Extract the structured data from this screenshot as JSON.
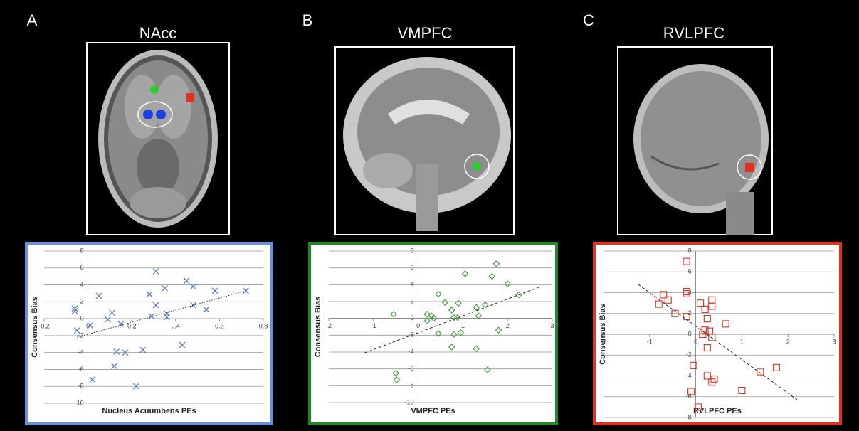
{
  "chart_data": [
    {
      "type": "scatter",
      "panel": "A",
      "title": "NAcc",
      "xlabel": "Nucleus Acuumbens PEs",
      "ylabel": "Consensus Bias",
      "color": "#5b7dbd",
      "frame_color": "#6a8fe0",
      "marker": "x",
      "grid": true,
      "xlim": [
        -0.2,
        0.8
      ],
      "ylim": [
        -10,
        8
      ],
      "xticks": [
        -0.2,
        0,
        0.2,
        0.4,
        0.6,
        0.8
      ],
      "yticks": [
        -10,
        -8,
        -6,
        -4,
        -2,
        0,
        2,
        4,
        6,
        8
      ],
      "x": [
        -0.06,
        -0.06,
        -0.05,
        0.01,
        0.02,
        0.05,
        0.09,
        0.11,
        0.12,
        0.13,
        0.15,
        0.17,
        0.22,
        0.25,
        0.28,
        0.29,
        0.31,
        0.31,
        0.35,
        0.36,
        0.36,
        0.43,
        0.45,
        0.48,
        0.48,
        0.54,
        0.58,
        0.72
      ],
      "y": [
        1.2,
        0.9,
        -1.4,
        -0.8,
        -7.2,
        2.7,
        -0.1,
        0.7,
        -5.6,
        -3.9,
        -0.6,
        -4,
        -8,
        -3.7,
        2.9,
        0.3,
        5.6,
        1.6,
        3.6,
        0.6,
        0.2,
        -3.1,
        4.5,
        3.8,
        1.6,
        1.1,
        3.3,
        3.3
      ],
      "trendline": {
        "style": "dotted",
        "x": [
          -0.05,
          0.72
        ],
        "y": [
          -2.2,
          3.3
        ]
      }
    },
    {
      "type": "scatter",
      "panel": "B",
      "title": "VMPFC",
      "xlabel": "VMPFC PEs",
      "ylabel": "Consensus Bias",
      "color": "#3a9a3a",
      "frame_color": "#1f8a1f",
      "marker": "diamond",
      "grid": true,
      "xlim": [
        -2,
        3
      ],
      "ylim": [
        -10,
        8
      ],
      "xticks": [
        -2,
        -1,
        0,
        1,
        2,
        3
      ],
      "yticks": [
        -10,
        -8,
        -6,
        -4,
        -2,
        0,
        2,
        4,
        6,
        8
      ],
      "x": [
        -0.55,
        -0.5,
        -0.48,
        0.2,
        0.2,
        0.3,
        0.35,
        0.45,
        0.45,
        0.6,
        0.75,
        0.75,
        0.8,
        0.8,
        0.88,
        0.9,
        0.95,
        1.05,
        1.3,
        1.3,
        1.35,
        1.5,
        1.55,
        1.65,
        1.75,
        1.8,
        2,
        2.25
      ],
      "y": [
        0.5,
        -6.5,
        -7.3,
        -0.3,
        0.5,
        0.3,
        0,
        -1.8,
        2.9,
        1.9,
        -3.4,
        1,
        0.1,
        -1.9,
        0.1,
        1.8,
        -1.7,
        5.3,
        -3.6,
        1.3,
        0.3,
        1.6,
        -6.1,
        5,
        6.5,
        -1.4,
        4.1,
        2.8
      ],
      "trendline": {
        "style": "dashed",
        "x": [
          -1.2,
          2.75
        ],
        "y": [
          -4.1,
          3.8
        ]
      }
    },
    {
      "type": "scatter",
      "panel": "C",
      "title": "RVLPFC",
      "xlabel": "RVLPFC PEs",
      "ylabel": "Consensus Bias",
      "color": "#e03020",
      "frame_color": "#e6301e",
      "marker": "square",
      "grid": true,
      "xlim": [
        -2,
        3
      ],
      "ylim": [
        -8,
        8
      ],
      "xticks": [
        -2,
        -1,
        0,
        1,
        2,
        3
      ],
      "yticks": [
        -8,
        -6,
        -4,
        -2,
        0,
        2,
        4,
        6,
        8
      ],
      "x": [
        -0.2,
        -0.7,
        -0.8,
        -0.6,
        -0.45,
        -0.2,
        -0.2,
        -0.2,
        0.1,
        0.2,
        0.35,
        0.35,
        0.25,
        0.3,
        0.2,
        0.15,
        0.35,
        0.25,
        0.65,
        -0.05,
        0.25,
        0.35,
        0.4,
        -0.1,
        0.05,
        1,
        1.4,
        1.75
      ],
      "y": [
        7,
        3.8,
        2.9,
        3.3,
        2,
        4.1,
        3.9,
        1.7,
        3,
        2.4,
        3.3,
        2.7,
        1.5,
        0.3,
        0.4,
        0,
        -0.3,
        -1.3,
        1,
        -3,
        -4,
        -4.6,
        -4.3,
        -5.5,
        -7,
        -5.4,
        -3.6,
        -3.2
      ],
      "trendline": {
        "style": "dashed",
        "x": [
          -1.25,
          2.2
        ],
        "y": [
          4.8,
          -6.3
        ]
      }
    }
  ]
}
